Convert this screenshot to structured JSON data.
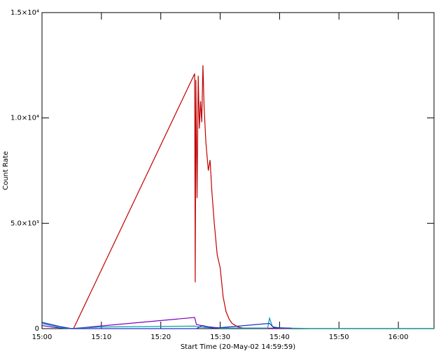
{
  "chart_data": {
    "type": "line",
    "xlabel": "Start Time (20-May-02 14:59:59)",
    "ylabel": "Count Rate",
    "xlim": [
      0,
      66
    ],
    "ylim": [
      0,
      15000
    ],
    "xticks": [
      {
        "value": 0,
        "label": "15:00"
      },
      {
        "value": 10,
        "label": "15:10"
      },
      {
        "value": 20,
        "label": "15:20"
      },
      {
        "value": 30,
        "label": "15:30"
      },
      {
        "value": 40,
        "label": "15:40"
      },
      {
        "value": 50,
        "label": "15:50"
      },
      {
        "value": 60,
        "label": "16:00"
      }
    ],
    "yticks": [
      0,
      {
        "value": 5000,
        "label": "5.0×10³"
      },
      {
        "value": 10000,
        "label": "1.0×10⁴"
      },
      {
        "value": 15000,
        "label": "1.5×10⁴"
      }
    ],
    "series": [
      {
        "color": "#c00000",
        "x": [
          5.3,
          25.7,
          25.8,
          25.9,
          26.1,
          26.3,
          26.5,
          26.7,
          26.9,
          27.1,
          27.3,
          27.6,
          28.0,
          28.3,
          28.6,
          29.0,
          29.5,
          30.0,
          30.5,
          31.0,
          31.5,
          32.0,
          33.0,
          34.0,
          42.0
        ],
        "values": [
          0,
          12100,
          2200,
          11800,
          6200,
          12000,
          9500,
          10800,
          9800,
          12500,
          10500,
          8800,
          7500,
          8000,
          6500,
          5000,
          3500,
          2900,
          1500,
          800,
          450,
          250,
          80,
          20,
          10
        ]
      },
      {
        "color": "#8000c0",
        "x": [
          0,
          2,
          5,
          25.7,
          26.0,
          27.5,
          30,
          40,
          42
        ],
        "values": [
          150,
          60,
          0,
          530,
          200,
          100,
          30,
          20,
          10
        ]
      },
      {
        "color": "#00a0b0",
        "x": [
          0,
          3,
          5,
          10,
          25.7,
          27,
          30,
          38,
          38.3,
          38.8,
          40,
          45,
          66
        ],
        "values": [
          250,
          50,
          0,
          80,
          120,
          60,
          20,
          30,
          500,
          100,
          30,
          10,
          10
        ]
      },
      {
        "color": "#2030c0",
        "x": [
          0,
          3,
          5,
          26,
          27,
          29,
          38.3,
          39,
          42
        ],
        "values": [
          300,
          100,
          0,
          0,
          150,
          20,
          250,
          50,
          20
        ]
      }
    ]
  }
}
